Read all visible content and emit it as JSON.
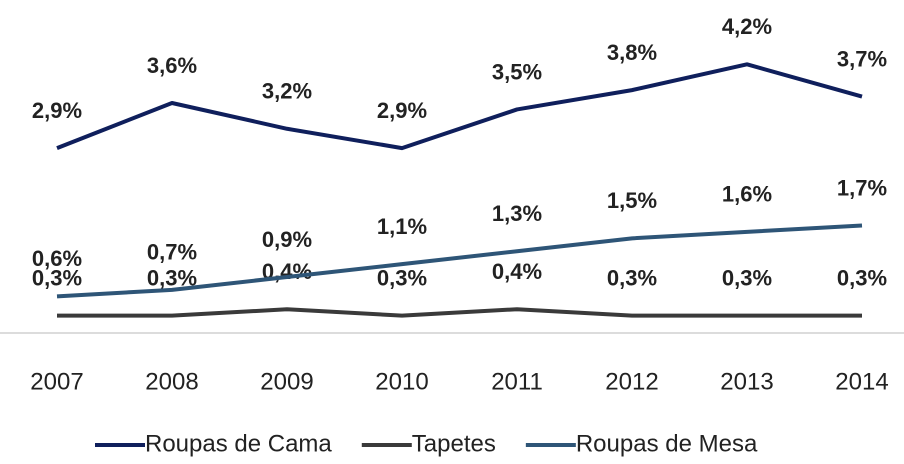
{
  "chart_data": {
    "type": "line",
    "categories": [
      "2007",
      "2008",
      "2009",
      "2010",
      "2011",
      "2012",
      "2013",
      "2014"
    ],
    "series": [
      {
        "name": "Roupas de Cama",
        "color": "#0f1f5c",
        "values": [
          2.9,
          3.6,
          3.2,
          2.9,
          3.5,
          3.8,
          4.2,
          3.7
        ],
        "value_labels": [
          "2,9%",
          "3,6%",
          "3,2%",
          "2,9%",
          "3,5%",
          "3,8%",
          "4,2%",
          "3,7%"
        ]
      },
      {
        "name": "Tapetes",
        "color": "#3a3a3a",
        "values": [
          0.3,
          0.3,
          0.4,
          0.3,
          0.4,
          0.3,
          0.3,
          0.3
        ],
        "value_labels": [
          "0,3%",
          "0,3%",
          "0,4%",
          "0,3%",
          "0,4%",
          "0,3%",
          "0,3%",
          "0,3%"
        ]
      },
      {
        "name": "Roupas de Mesa",
        "color": "#2e5577",
        "values": [
          0.6,
          0.7,
          0.9,
          1.1,
          1.3,
          1.5,
          1.6,
          1.7
        ],
        "value_labels": [
          "0,6%",
          "0,7%",
          "0,9%",
          "1,1%",
          "1,3%",
          "1,5%",
          "1,6%",
          "1,7%"
        ]
      }
    ],
    "ylim": [
      0,
      4.5
    ]
  }
}
